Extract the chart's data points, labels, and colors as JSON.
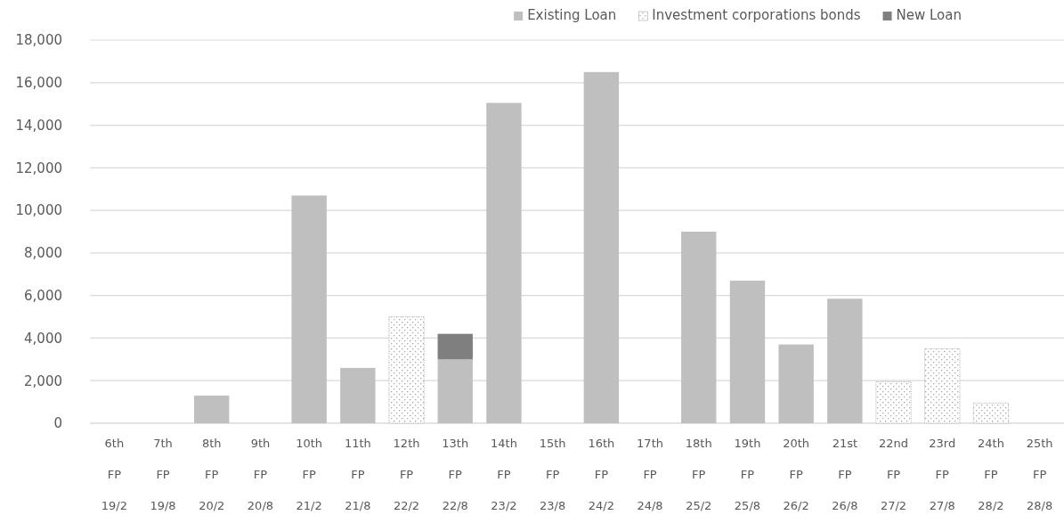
{
  "chart_data": {
    "type": "bar",
    "stacked": true,
    "grid": "y",
    "legend": "top right",
    "categories": [
      "6th\nFP\n19/2",
      "7th\nFP\n19/8",
      "8th\nFP\n20/2",
      "9th\nFP\n20/8",
      "10th\nFP\n21/2",
      "11th\nFP\n21/8",
      "12th\nFP\n22/2",
      "13th\nFP\n22/8",
      "14th\nFP\n23/2",
      "15th\nFP\n23/8",
      "16th\nFP\n24/2",
      "17th\nFP\n24/8",
      "18th\nFP\n25/2",
      "19th\nFP\n25/8",
      "20th\nFP\n26/2",
      "21st\nFP\n26/8",
      "22nd\nFP\n27/2",
      "23rd\nFP\n27/8",
      "24th\nFP\n28/2",
      "25th\nFP\n28/8"
    ],
    "series": [
      {
        "name": "Existing Loan",
        "color": "#bfbfbf",
        "values": [
          null,
          null,
          1300,
          null,
          10700,
          2600,
          null,
          3000,
          15050,
          null,
          16500,
          null,
          9000,
          6700,
          3700,
          5850,
          null,
          null,
          null,
          null
        ]
      },
      {
        "name": "Investment corporations bonds",
        "color": "#a6a6a6",
        "values": [
          null,
          null,
          null,
          null,
          null,
          null,
          5000,
          null,
          null,
          null,
          null,
          null,
          null,
          null,
          null,
          null,
          1950,
          3500,
          950,
          null
        ]
      },
      {
        "name": "New Loan",
        "color": "#7f7f7f",
        "values": [
          null,
          null,
          null,
          null,
          null,
          null,
          null,
          1200,
          null,
          null,
          null,
          null,
          null,
          null,
          null,
          null,
          null,
          null,
          null,
          null
        ]
      }
    ],
    "ylim": [
      0,
      18000
    ],
    "yticks": [
      {
        "value": 0,
        "label": "0"
      },
      {
        "value": 2000,
        "label": "2,000"
      },
      {
        "value": 4000,
        "label": "4,000"
      },
      {
        "value": 6000,
        "label": "6,000"
      },
      {
        "value": 8000,
        "label": "8,000"
      },
      {
        "value": 10000,
        "label": "10,000"
      },
      {
        "value": 12000,
        "label": "12,000"
      },
      {
        "value": 14000,
        "label": "14,000"
      },
      {
        "value": 16000,
        "label": "16,000"
      },
      {
        "value": 18000,
        "label": "18,000"
      }
    ]
  }
}
